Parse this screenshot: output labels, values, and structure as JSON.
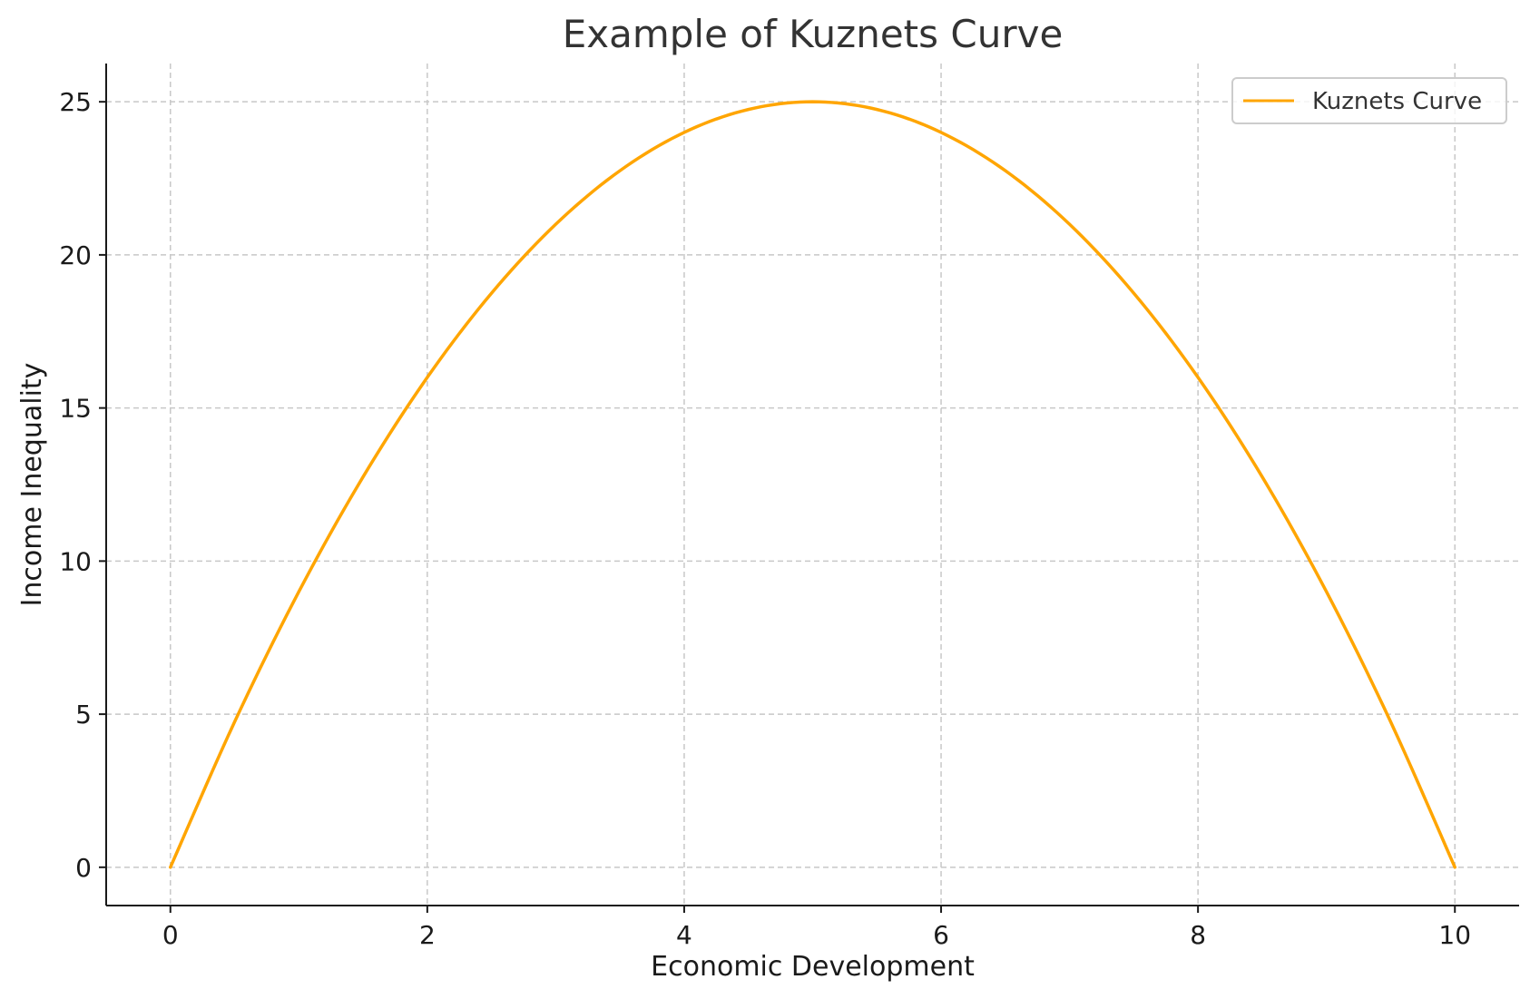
{
  "chart_data": {
    "type": "line",
    "title": "Example of Kuznets Curve",
    "xlabel": "Economic Development",
    "ylabel": "Income Inequality",
    "xlim": [
      -0.5,
      10.5
    ],
    "ylim": [
      -1.25,
      26.25
    ],
    "xticks": [
      0,
      2,
      4,
      6,
      8,
      10
    ],
    "yticks": [
      0,
      5,
      10,
      15,
      20,
      25
    ],
    "x_tick_labels": [
      "0",
      "2",
      "4",
      "6",
      "8",
      "10"
    ],
    "y_tick_labels": [
      "0",
      "5",
      "10",
      "15",
      "20",
      "25"
    ],
    "grid": true,
    "legend_position": "top-right",
    "series": [
      {
        "name": "Kuznets Curve",
        "color": "#FFA500",
        "x": [
          0,
          0.5,
          1,
          1.5,
          2,
          2.5,
          3,
          3.5,
          4,
          4.5,
          5,
          5.5,
          6,
          6.5,
          7,
          7.5,
          8,
          8.5,
          9,
          9.5,
          10
        ],
        "y": [
          0,
          4.75,
          9,
          12.75,
          16,
          18.75,
          21,
          22.75,
          24,
          24.75,
          25,
          24.75,
          24,
          22.75,
          21,
          18.75,
          16,
          12.75,
          9,
          4.75,
          0
        ]
      }
    ]
  }
}
